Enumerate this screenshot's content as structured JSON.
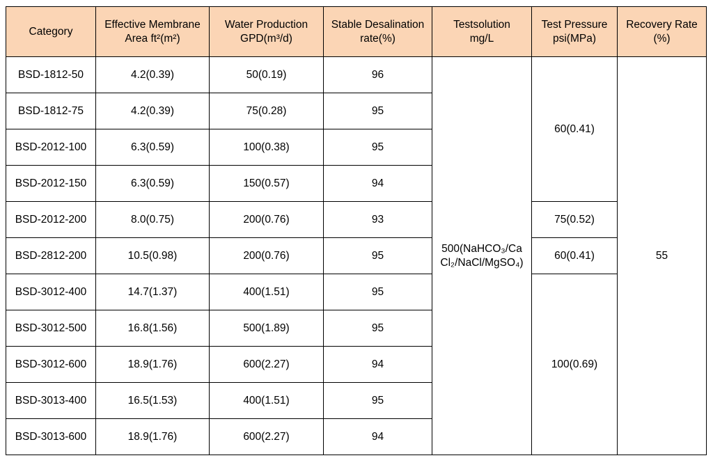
{
  "header": {
    "category": "Category",
    "area": [
      "Effective Membrane",
      "Area ft²(m²)"
    ],
    "water": [
      "Water Production",
      "GPD(m³/d)"
    ],
    "desal": [
      "Stable Desalination",
      "rate(%)"
    ],
    "solution": [
      "Testsolution",
      "mg/L"
    ],
    "pressure": [
      "Test Pressure",
      "psi(MPa)"
    ],
    "recovery": [
      "Recovery Rate",
      "(%)"
    ]
  },
  "rows": [
    {
      "category": "BSD-1812-50",
      "area": "4.2(0.39)",
      "water": "50(0.19)",
      "desal": "96"
    },
    {
      "category": "BSD-1812-75",
      "area": "4.2(0.39)",
      "water": "75(0.28)",
      "desal": "95"
    },
    {
      "category": "BSD-2012-100",
      "area": "6.3(0.59)",
      "water": "100(0.38)",
      "desal": "95"
    },
    {
      "category": "BSD-2012-150",
      "area": "6.3(0.59)",
      "water": "150(0.57)",
      "desal": "94"
    },
    {
      "category": "BSD-2012-200",
      "area": "8.0(0.75)",
      "water": "200(0.76)",
      "desal": "93"
    },
    {
      "category": "BSD-2812-200",
      "area": "10.5(0.98)",
      "water": "200(0.76)",
      "desal": "95"
    },
    {
      "category": "BSD-3012-400",
      "area": "14.7(1.37)",
      "water": "400(1.51)",
      "desal": "95"
    },
    {
      "category": "BSD-3012-500",
      "area": "16.8(1.56)",
      "water": "500(1.89)",
      "desal": "95"
    },
    {
      "category": "BSD-3012-600",
      "area": "18.9(1.76)",
      "water": "600(2.27)",
      "desal": "94"
    },
    {
      "category": "BSD-3013-400",
      "area": "16.5(1.53)",
      "water": "400(1.51)",
      "desal": "95"
    },
    {
      "category": "BSD-3013-600",
      "area": "18.9(1.76)",
      "water": "600(2.27)",
      "desal": "94"
    }
  ],
  "merged": {
    "solution": [
      "500(NaHCO₃/Ca",
      "Cl₂/NaCl/MgSO₄)"
    ],
    "pressure_group_1": "60(0.41)",
    "pressure_group_2": "75(0.52)",
    "pressure_group_3": "60(0.41)",
    "pressure_group_4": "100(0.69)",
    "recovery": "55"
  },
  "colors": {
    "header_background": "#FBD5B5",
    "border": "#000000",
    "body_background": "#FFFFFF"
  }
}
